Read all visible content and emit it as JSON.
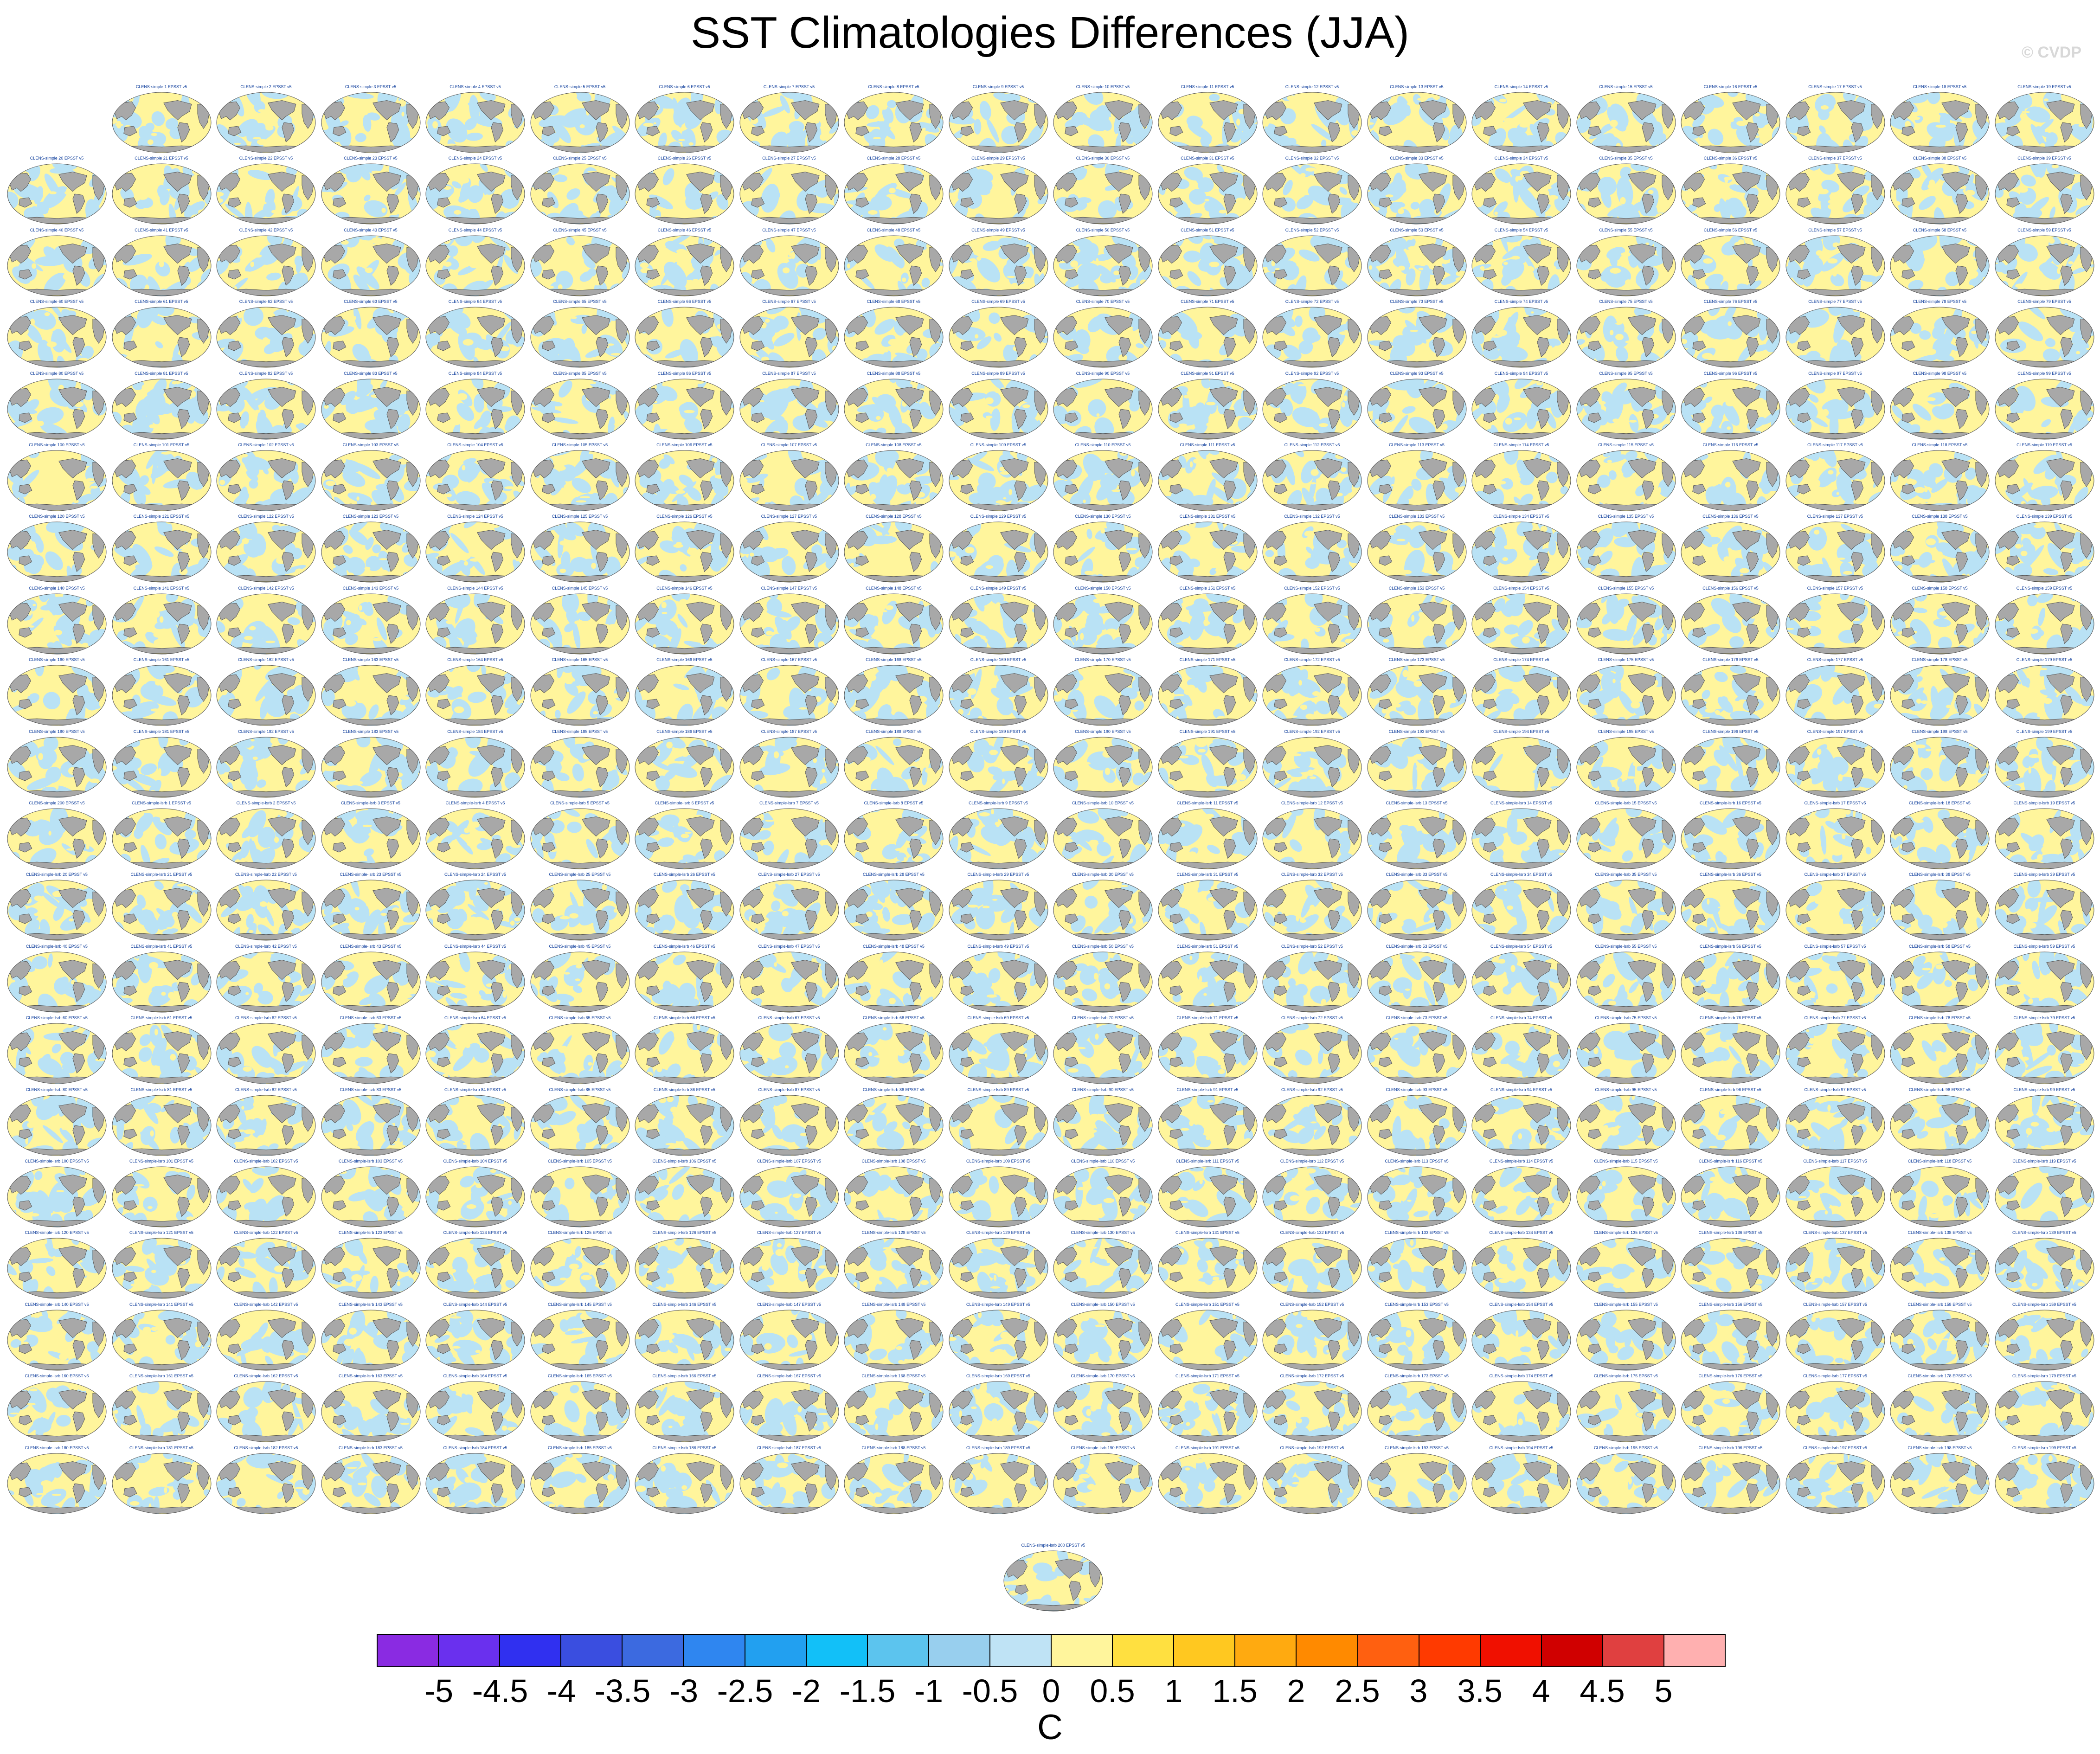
{
  "title": "SST Climatologies Differences (JJA)",
  "watermark": "© CVDP",
  "colors": {
    "land": "#a8a8a8",
    "land_stroke": "#4a4a4a",
    "negative_small": "#b9e2f5",
    "positive_small": "#fff59c",
    "panel_title": "#0a3a9a"
  },
  "panels": {
    "grid_columns": 20,
    "grid_rows": 20,
    "first_row_starts_at_column": 1,
    "last_single_panel": true,
    "title_template_first_group": "CLENS-simple {n} EPSST v5",
    "title_template_second_group": "CLENS-simple-lsrb {n} EPSST v5",
    "group_one_count": 200,
    "total_count": 400
  },
  "colorbar": {
    "colors": [
      "#8a2be2",
      "#6a30ee",
      "#3030f0",
      "#3a4ee0",
      "#3c6ae0",
      "#2f86f0",
      "#22a0f0",
      "#12c0f8",
      "#5cc4ee",
      "#98cfee",
      "#bfe3f5",
      "#fff59c",
      "#ffe040",
      "#ffc820",
      "#ffaa10",
      "#ff8a00",
      "#ff6010",
      "#ff3a00",
      "#f01000",
      "#d00000",
      "#e04040",
      "#ffb0b0"
    ],
    "labels": [
      "-5",
      "-4.5",
      "-4",
      "-3.5",
      "-3",
      "-2.5",
      "-2",
      "-1.5",
      "-1",
      "-0.5",
      "0",
      "0.5",
      "1",
      "1.5",
      "2",
      "2.5",
      "3",
      "3.5",
      "4",
      "4.5",
      "5"
    ],
    "units": "C"
  }
}
